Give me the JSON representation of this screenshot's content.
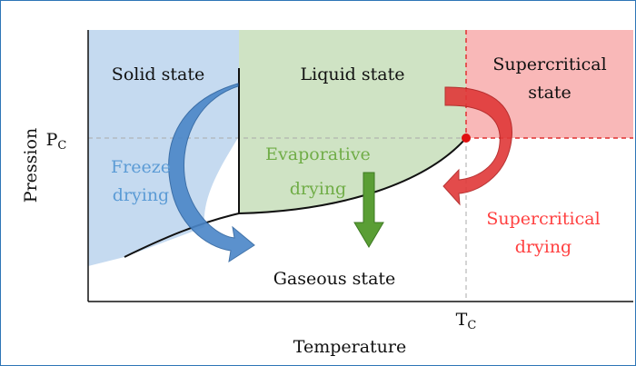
{
  "regions": {
    "solid": [
      "Solid state"
    ],
    "liquid": [
      "Liquid state"
    ],
    "supercritical": [
      "Supercritical",
      "state"
    ],
    "gas": [
      "Gaseous state"
    ]
  },
  "axes": {
    "y_label": "Pression",
    "x_label": "Temperature"
  },
  "critical_point": {
    "pressure": {
      "symbol": "P",
      "subscript": "C"
    },
    "temperature": {
      "symbol": "T",
      "subscript": "C"
    }
  },
  "methods": {
    "freeze": [
      "Freeze",
      "drying"
    ],
    "evaporative": [
      "Evaporative",
      "drying"
    ],
    "supercritical": [
      "Supercritical",
      "drying"
    ]
  }
}
